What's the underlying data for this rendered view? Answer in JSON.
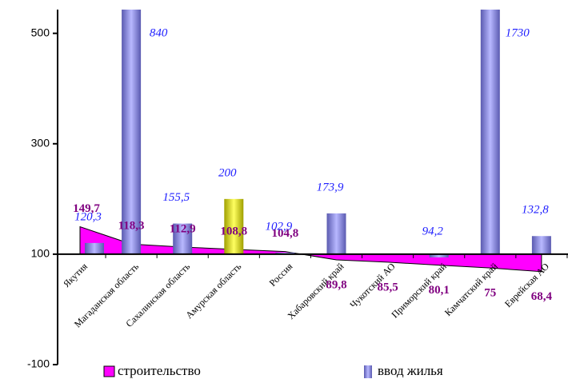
{
  "chart_data": {
    "type": "bar-area",
    "categories": [
      "Якутия",
      "Магаданская область",
      "Сахалинская область",
      "Амурская область",
      "Россия",
      "Хабаровский край",
      "Чукотский АО",
      "Приморский край",
      "Камчатский  край",
      "Еврейская  АО"
    ],
    "series": [
      {
        "name": "строительство",
        "type": "area",
        "color": "#ff00ff",
        "values": [
          149.7,
          118.3,
          112.9,
          108.8,
          104.8,
          89.8,
          85.5,
          80.1,
          75,
          68.4
        ],
        "value_labels": [
          "149,7",
          "118,3",
          "112,9",
          "108,8",
          "104,8",
          "89,8",
          "85,5",
          "80,1",
          "75",
          "68,4"
        ]
      },
      {
        "name": "ввод жилья",
        "type": "bar",
        "color": "#8484e6",
        "colors": [
          "#8484e6",
          "#8484e6",
          "#8484e6",
          "#e6e600",
          "#8484e6",
          "#8484e6",
          "#8484e6",
          "#8484e6",
          "#8484e6",
          "#8484e6"
        ],
        "values": [
          120.3,
          840,
          155.5,
          200,
          102.9,
          173.9,
          null,
          94.2,
          1730,
          132.8
        ],
        "value_labels": [
          "120,3",
          "840",
          "155,5",
          "200",
          "102,9",
          "173,9",
          null,
          "94,2",
          "1730",
          "132,8"
        ]
      }
    ],
    "ylim": [
      -100,
      543
    ],
    "yticks": [
      -100,
      100,
      300,
      500
    ],
    "x_axis_crosses_at": 100
  }
}
